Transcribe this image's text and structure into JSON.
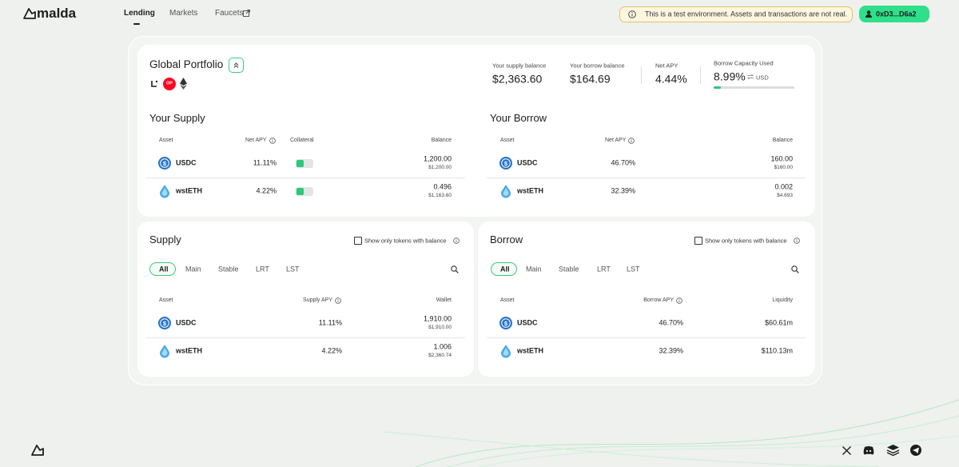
{
  "nav": {
    "logo": "malda",
    "links": [
      "Lending",
      "Markets",
      "Faucets"
    ],
    "notice": "This is a test environment. Assets and transactions are not real.",
    "wallet": "0xD3...D6a2"
  },
  "portfolio": {
    "title": "Global Portfolio",
    "chain_badge": "OP",
    "stats": [
      {
        "label": "Your supply balance",
        "value": "$2,363.60"
      },
      {
        "label": "Your borrow balance",
        "value": "$164.69"
      },
      {
        "label": "Net APY",
        "value": "4.44%"
      }
    ],
    "capacity": {
      "label": "Borrow Capacity Used",
      "value": "8.99%",
      "unit": "USD"
    }
  },
  "your_supply": {
    "title": "Your Supply",
    "headers": [
      "Asset",
      "Net APY",
      "Collateral",
      "Balance"
    ],
    "rows": [
      [
        "USDC",
        "11.11%",
        "1,200.00",
        "$1,200.00"
      ],
      [
        "wstETH",
        "4.22%",
        "0.496",
        "$1,163.60"
      ]
    ]
  },
  "your_borrow": {
    "title": "Your Borrow",
    "headers": [
      "Asset",
      "Net APY",
      "Balance"
    ],
    "rows": [
      [
        "USDC",
        "46.70%",
        "160.00",
        "$160.00"
      ],
      [
        "wstETH",
        "32.39%",
        "0.002",
        "$4.693"
      ]
    ]
  },
  "supply_market": {
    "title": "Supply",
    "filter": "Show only tokens with balance",
    "tabs": [
      "All",
      "Main",
      "Stable",
      "LRT",
      "LST"
    ],
    "headers": [
      "Asset",
      "Supply APY",
      "Wallet"
    ],
    "rows": [
      [
        "USDC",
        "11.11%",
        "1,910.00",
        "$1,910.00"
      ],
      [
        "wstETH",
        "4.22%",
        "1.006",
        "$2,360.74"
      ]
    ]
  },
  "borrow_market": {
    "title": "Borrow",
    "filter": "Show only tokens with balance",
    "tabs": [
      "All",
      "Main",
      "Stable",
      "LRT",
      "LST"
    ],
    "headers": [
      "Asset",
      "Borrow APY",
      "Liquidity"
    ],
    "rows": [
      [
        "USDC",
        "46.70%",
        "$60.61m"
      ],
      [
        "wstETH",
        "32.39%",
        "$110.13m"
      ]
    ]
  }
}
